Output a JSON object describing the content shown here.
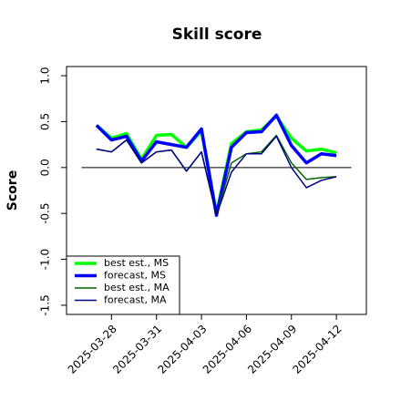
{
  "chart_data": {
    "type": "line",
    "title": "Skill score",
    "ylabel": "Score",
    "x": [
      "2025-03-27",
      "2025-03-28",
      "2025-03-29",
      "2025-03-30",
      "2025-03-31",
      "2025-04-01",
      "2025-04-02",
      "2025-04-03",
      "2025-04-04",
      "2025-04-05",
      "2025-04-06",
      "2025-04-07",
      "2025-04-08",
      "2025-04-09",
      "2025-04-10",
      "2025-04-11",
      "2025-04-12"
    ],
    "series": [
      {
        "name": "best est., MS",
        "color": "#00ff00",
        "width": 3.5,
        "values": [
          0.46,
          0.32,
          0.37,
          0.09,
          0.35,
          0.36,
          0.22,
          0.4,
          -0.5,
          0.26,
          0.39,
          0.41,
          0.56,
          0.32,
          0.18,
          0.2,
          0.16
        ]
      },
      {
        "name": "forecast, MS",
        "color": "#0000ff",
        "width": 3.5,
        "values": [
          0.46,
          0.3,
          0.34,
          0.07,
          0.28,
          0.25,
          0.22,
          0.42,
          -0.52,
          0.22,
          0.38,
          0.39,
          0.57,
          0.24,
          0.05,
          0.15,
          0.13
        ]
      },
      {
        "name": "best est., MA",
        "color": "#006400",
        "width": 1.5,
        "values": [
          0.2,
          0.17,
          0.3,
          0.05,
          0.17,
          0.19,
          -0.04,
          0.17,
          -0.52,
          0.05,
          0.15,
          0.17,
          0.35,
          0.05,
          -0.13,
          -0.11,
          -0.1
        ]
      },
      {
        "name": "forecast, MA",
        "color": "#00008b",
        "width": 1.5,
        "values": [
          0.2,
          0.17,
          0.3,
          0.05,
          0.17,
          0.19,
          -0.04,
          0.17,
          -0.52,
          -0.05,
          0.15,
          0.15,
          0.34,
          0.0,
          -0.22,
          -0.14,
          -0.1
        ]
      }
    ],
    "xlim": [
      "2025-03-25",
      "2025-04-14"
    ],
    "xticks": [
      "2025-03-28",
      "2025-03-31",
      "2025-04-03",
      "2025-04-06",
      "2025-04-09",
      "2025-04-12"
    ],
    "xtick_colors": [
      "#000000",
      "#000000",
      "#228b22",
      "#000000",
      "#000000",
      "#000000"
    ],
    "ylim": [
      -1.6,
      1.1
    ],
    "yticks": [
      {
        "value": 1,
        "label": "1.0"
      },
      0.5,
      {
        "value": 0,
        "label": "0.0"
      },
      -0.5,
      {
        "value": -1,
        "label": "-1.0"
      },
      -1.5
    ],
    "hline": 0,
    "legend": "bottom-left"
  }
}
